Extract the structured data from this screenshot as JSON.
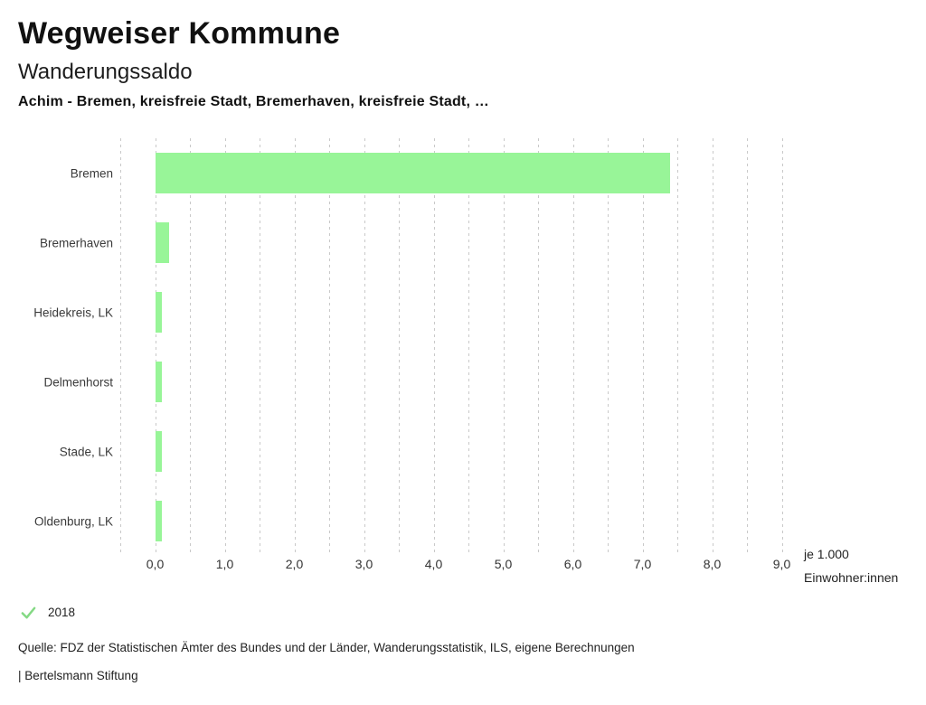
{
  "header": {
    "app_title": "Wegweiser Kommune",
    "chart_title": "Wanderungssaldo",
    "subtitle": "Achim - Bremen, kreisfreie Stadt, Bremerhaven, kreisfreie Stadt, …"
  },
  "chart_data": {
    "type": "bar",
    "orientation": "horizontal",
    "title": "Wanderungssaldo",
    "categories": [
      "Bremen",
      "Bremerhaven",
      "Heidekreis, LK",
      "Delmenhorst",
      "Stade, LK",
      "Oldenburg, LK"
    ],
    "series": [
      {
        "name": "2018",
        "values": [
          7.4,
          0.2,
          0.1,
          0.1,
          0.1,
          0.1
        ]
      }
    ],
    "xlabel": "je 1.000 Einwohner:innen",
    "unit_label_lines": [
      "je 1.000",
      "Einwohner:innen"
    ],
    "xlim": [
      -0.5,
      9.0
    ],
    "gridline_step": 0.5,
    "grid": true,
    "x_tick_values": [
      0,
      1,
      2,
      3,
      4,
      5,
      6,
      7,
      8,
      9
    ],
    "x_tick_labels": [
      "0,0",
      "1,0",
      "2,0",
      "3,0",
      "4,0",
      "5,0",
      "6,0",
      "7,0",
      "8,0",
      "9,0"
    ],
    "bar_color": "#98f598",
    "grid_color": "#c9c9c9",
    "legend_position": "bottom-left"
  },
  "legend": {
    "items": [
      {
        "label": "2018",
        "checked": true,
        "icon": "check-icon",
        "check_color": "#84d984"
      }
    ]
  },
  "footer": {
    "source": "Quelle: FDZ der Statistischen Ämter des Bundes und der Länder, Wanderungsstatistik, ILS, eigene Berechnungen",
    "attribution": "| Bertelsmann Stiftung"
  }
}
